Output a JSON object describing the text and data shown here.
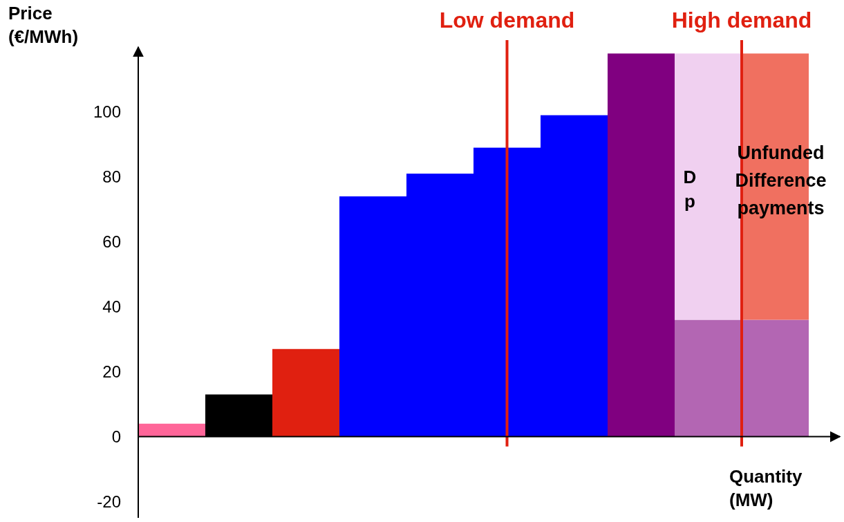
{
  "chart_data": {
    "type": "bar",
    "ylabel": "Price (€/MWh)",
    "xlabel": "Quantity (MW)",
    "categories": [
      null,
      null,
      null,
      null,
      null,
      null,
      null,
      null,
      null,
      null
    ],
    "series": [
      {
        "values": [
          4,
          13,
          27,
          74,
          81,
          89,
          99,
          118,
          36,
          36
        ],
        "colors": [
          "#ff6699",
          "#000000",
          "#e02010",
          "#0000ff",
          "#0000ff",
          "#0000ff",
          "#0000ff",
          "#800080",
          "#b366b3",
          "#b366b3"
        ]
      },
      {
        "values": [
          null,
          null,
          null,
          null,
          null,
          null,
          null,
          null,
          82,
          82
        ],
        "colors": [
          "#f0d0f0",
          "#f0d0f0",
          "#f0d0f0",
          "#f0d0f0",
          "#f0d0f0",
          "#f0d0f0",
          "#f0d0f0",
          "#f0d0f0",
          "#f0d0f0",
          "#f07060"
        ]
      }
    ],
    "stacked": true,
    "ylim": [
      -25,
      120
    ],
    "yticks": [
      -20,
      0,
      20,
      40,
      60,
      80,
      100
    ],
    "tick_labels": "y",
    "annotations": [
      "Low demand",
      "High demand",
      "Unfunded Difference payments",
      "D",
      "p"
    ]
  }
}
